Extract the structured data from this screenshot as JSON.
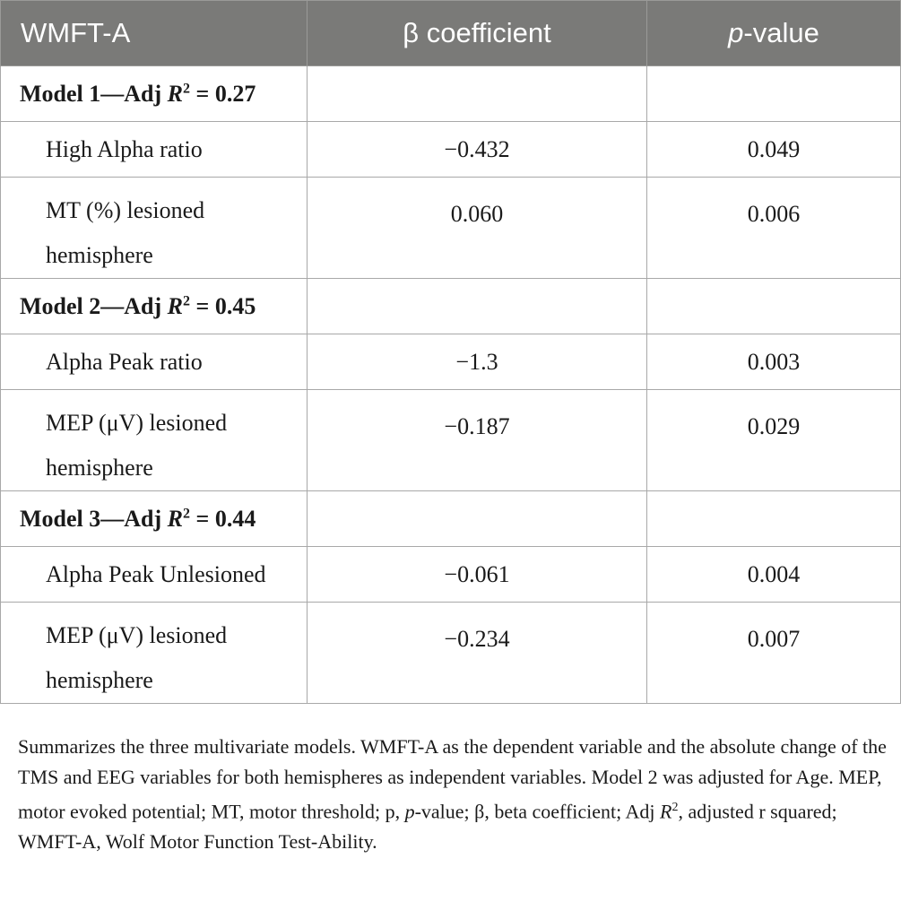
{
  "table": {
    "headers": {
      "col1": "WMFT-A",
      "col2": "β coefficient",
      "col3_italic": "p",
      "col3_rest": "-value"
    },
    "models": [
      {
        "label_pre": "Model 1—Adj ",
        "label_var": "R",
        "label_sup": "2",
        "label_post": " = 0.27",
        "rows": [
          {
            "variable": "High Alpha ratio",
            "beta": "−0.432",
            "p": "0.049"
          },
          {
            "variable": "MT (%) lesioned hemisphere",
            "beta": "0.060",
            "p": "0.006"
          }
        ]
      },
      {
        "label_pre": "Model 2—Adj ",
        "label_var": "R",
        "label_sup": "2",
        "label_post": " = 0.45",
        "rows": [
          {
            "variable": "Alpha Peak ratio",
            "beta": "−1.3",
            "p": "0.003"
          },
          {
            "variable": "MEP (μV) lesioned hemisphere",
            "beta": "−0.187",
            "p": "0.029"
          }
        ]
      },
      {
        "label_pre": "Model 3—Adj ",
        "label_var": "R",
        "label_sup": "2",
        "label_post": " = 0.44",
        "rows": [
          {
            "variable": "Alpha Peak Unlesioned",
            "beta": "−0.061",
            "p": "0.004"
          },
          {
            "variable": "MEP (μV) lesioned hemisphere",
            "beta": "−0.234",
            "p": "0.007"
          }
        ]
      }
    ]
  },
  "caption": {
    "part1": "Summarizes the three multivariate models. WMFT-A as the dependent variable and the absolute change of the TMS and EEG variables for both hemispheres as independent variables. Model 2 was adjusted for Age. MEP, motor evoked potential; MT, motor threshold; p, ",
    "part2_italic": "p",
    "part3": "-value; β, beta coefficient; Adj ",
    "part4_italic": "R",
    "part5_sup": "2",
    "part6": ", adjusted r squared; WMFT-A, Wolf Motor Function Test-Ability."
  },
  "colors": {
    "header_bg": "#7a7a78",
    "header_text": "#ffffff",
    "border": "#a8a8a8"
  }
}
